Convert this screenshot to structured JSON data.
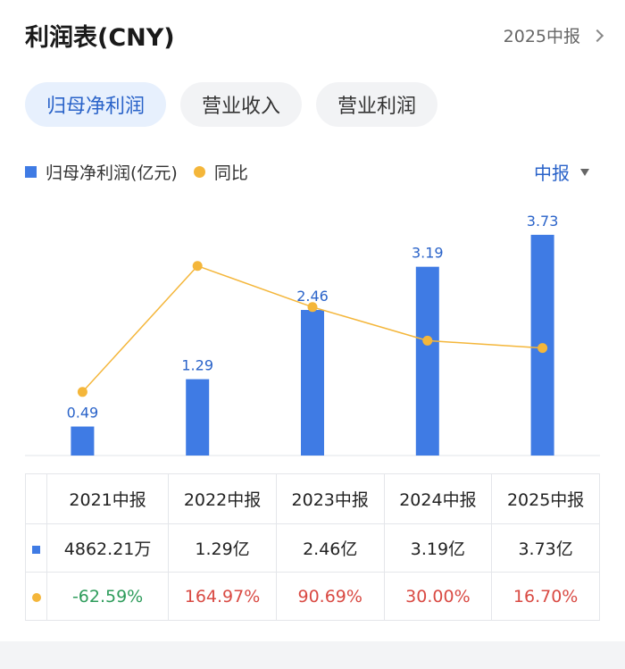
{
  "header": {
    "title": "利润表(CNY)",
    "period_link": "2025中报"
  },
  "tabs": [
    {
      "label": "归母净利润",
      "active": true
    },
    {
      "label": "营业收入",
      "active": false
    },
    {
      "label": "营业利润",
      "active": false
    }
  ],
  "legend": {
    "bar_label": "归母净利润(亿元)",
    "line_label": "同比",
    "period_select": "中报"
  },
  "colors": {
    "bar": "#3f7be4",
    "line": "#f4b63a",
    "accent": "#2a63c9",
    "negative": "#2e9c5b",
    "positive": "#d94a43"
  },
  "chart_data": {
    "type": "bar",
    "categories": [
      "2021中报",
      "2022中报",
      "2023中报",
      "2024中报",
      "2025中报"
    ],
    "series": [
      {
        "name": "归母净利润(亿元)",
        "type": "bar",
        "values": [
          0.49,
          1.29,
          2.46,
          3.19,
          3.73
        ],
        "labels": [
          "0.49",
          "1.29",
          "2.46",
          "3.19",
          "3.73"
        ]
      },
      {
        "name": "同比",
        "type": "line",
        "values": [
          -62.59,
          164.97,
          90.69,
          30.0,
          16.7
        ]
      }
    ],
    "legend_position": "top-left"
  },
  "table": {
    "header": [
      "2021中报",
      "2022中报",
      "2023中报",
      "2024中报",
      "2025中报"
    ],
    "rows": [
      {
        "marker": "bar",
        "cells": [
          "4862.21万",
          "1.29亿",
          "2.46亿",
          "3.19亿",
          "3.73亿"
        ]
      },
      {
        "marker": "line",
        "cells": [
          "-62.59%",
          "164.97%",
          "90.69%",
          "30.00%",
          "16.70%"
        ]
      }
    ]
  }
}
